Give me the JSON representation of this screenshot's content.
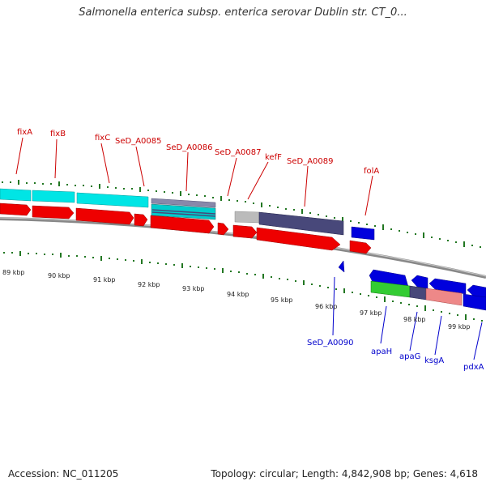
{
  "header": {
    "title": "Salmonella enterica subsp. enterica serovar Dublin str. CT_0..."
  },
  "footer": {
    "accession": "Accession: NC_011205",
    "summary": "Topology: circular; Length: 4,842,908 bp; Genes: 4,618"
  },
  "colors": {
    "gene_label_top": "#cc0000",
    "gene_label_bottom": "#0000cc",
    "cds_red": "#ee0000",
    "cds_cyan": "#00e5e5",
    "cds_blue": "#0000dd",
    "cds_purple": "#48487a",
    "cds_green": "#33cc33",
    "cds_salmon": "#ee8888",
    "cds_gray": "#bbbbbb",
    "tick_green": "#227722",
    "backbone_gray": "#888888"
  },
  "kbp_labels": [
    "89 kbp",
    "90 kbp",
    "91 kbp",
    "92 kbp",
    "93 kbp",
    "94 kbp",
    "95 kbp",
    "96 kbp",
    "97 kbp",
    "98 kbp",
    "99 kbp"
  ],
  "top_labels": [
    "fixA",
    "fixB",
    "fixC",
    "SeD_A0085",
    "SeD_A0086",
    "SeD_A0087",
    "kefF",
    "SeD_A0089",
    "folA"
  ],
  "bottom_labels": [
    "SeD_A0090",
    "apaH",
    "apaG",
    "ksgA",
    "pdxA"
  ]
}
